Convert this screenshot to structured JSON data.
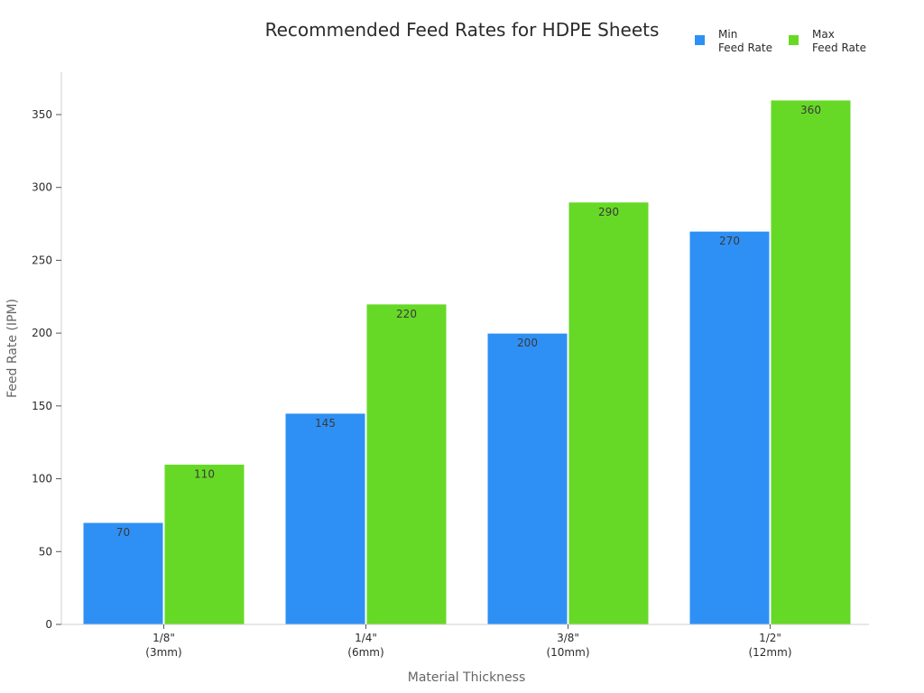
{
  "chart_data": {
    "type": "bar",
    "title": "Recommended Feed Rates for HDPE Sheets",
    "xlabel": "Material Thickness",
    "ylabel": "Feed Rate (IPM)",
    "categories": [
      [
        "1/8\"",
        "(3mm)"
      ],
      [
        "1/4\"",
        "(6mm)"
      ],
      [
        "3/8\"",
        "(10mm)"
      ],
      [
        "1/2\"",
        "(12mm)"
      ]
    ],
    "series": [
      {
        "name": [
          "Min",
          "Feed Rate"
        ],
        "color": "#2e90f5",
        "values": [
          70,
          145,
          200,
          270
        ]
      },
      {
        "name": [
          "Max",
          "Feed Rate"
        ],
        "color": "#66d926",
        "values": [
          110,
          220,
          290,
          360
        ]
      }
    ],
    "ylim": [
      0,
      375
    ],
    "yticks": [
      0,
      50,
      100,
      150,
      200,
      250,
      300,
      350
    ],
    "grid": false,
    "legend_position": "top-right",
    "data_labels": true
  }
}
